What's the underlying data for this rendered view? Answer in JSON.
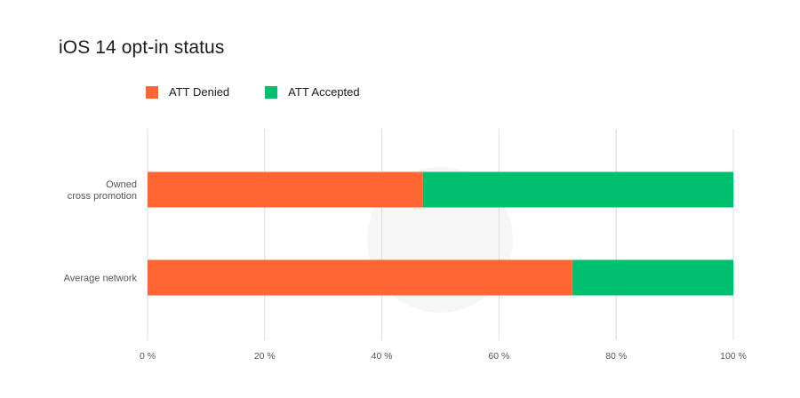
{
  "chart_data": {
    "type": "bar",
    "orientation": "horizontal",
    "stacked": true,
    "title": "iOS 14 opt-in status",
    "categories": [
      [
        "Owned",
        "cross promotion"
      ],
      [
        "Average network"
      ]
    ],
    "series": [
      {
        "name": "ATT Denied",
        "color": "#FF6633",
        "values": [
          47,
          72.5
        ]
      },
      {
        "name": "ATT Accepted",
        "color": "#00BF6F",
        "values": [
          53,
          27.5
        ]
      }
    ],
    "xlim": [
      0,
      100
    ],
    "xticks": [
      0,
      20,
      40,
      60,
      80,
      100
    ],
    "tick_suffix": " %",
    "grid": true,
    "legend_position": "top-left",
    "xlabel": "",
    "ylabel": ""
  }
}
